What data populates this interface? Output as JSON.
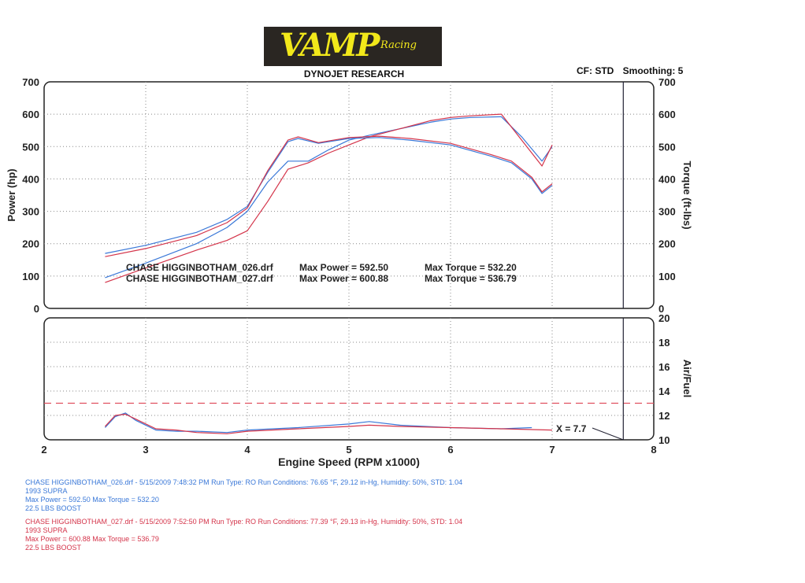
{
  "header": {
    "logo_main": "VAMP",
    "logo_sub": "Racing",
    "title": "DYNOJET RESEARCH",
    "cf": "CF: STD",
    "smoothing": "Smoothing: 5"
  },
  "colors": {
    "run_026": "#3a78d8",
    "run_027": "#d4344a",
    "afr_ref": "#e05060"
  },
  "chart_data": [
    {
      "type": "line",
      "panel": "power-torque",
      "ylabel": "Power (hp)",
      "y2label": "Torque (ft-lbs)",
      "ylim": [
        0,
        700
      ],
      "yticks": [
        "0",
        "100",
        "200",
        "300",
        "400",
        "500",
        "600",
        "700"
      ],
      "xlim": [
        2,
        8
      ],
      "grid": true,
      "annotations": [
        {
          "run": "CHASE HIGGINBOTHAM_026.drf",
          "power_text": "Max Power = 592.50",
          "torque_text": "Max Torque = 532.20"
        },
        {
          "run": "CHASE HIGGINBOTHAM_027.drf",
          "power_text": "Max Power = 600.88",
          "torque_text": "Max Torque = 536.79"
        }
      ],
      "series": [
        {
          "name": "CHASE HIGGINBOTHAM_026.drf",
          "measure": "power",
          "color": "#3a78d8",
          "x": [
            2.6,
            3.0,
            3.5,
            3.8,
            4.0,
            4.2,
            4.4,
            4.6,
            4.8,
            5.0,
            5.2,
            5.5,
            5.8,
            6.0,
            6.2,
            6.5,
            6.7,
            6.9,
            7.0
          ],
          "y": [
            95,
            140,
            200,
            250,
            300,
            390,
            455,
            455,
            490,
            520,
            535,
            555,
            575,
            585,
            590,
            592,
            530,
            455,
            500
          ]
        },
        {
          "name": "CHASE HIGGINBOTHAM_027.drf",
          "measure": "power",
          "color": "#d4344a",
          "x": [
            2.6,
            3.0,
            3.5,
            3.8,
            4.0,
            4.2,
            4.4,
            4.6,
            4.8,
            5.0,
            5.2,
            5.5,
            5.8,
            6.0,
            6.2,
            6.5,
            6.7,
            6.9,
            7.0
          ],
          "y": [
            80,
            125,
            180,
            210,
            240,
            330,
            430,
            450,
            480,
            505,
            530,
            555,
            580,
            590,
            595,
            600,
            520,
            440,
            505
          ]
        },
        {
          "name": "CHASE HIGGINBOTHAM_026.drf",
          "measure": "torque",
          "color": "#3a78d8",
          "x": [
            2.6,
            3.0,
            3.5,
            3.8,
            4.0,
            4.2,
            4.4,
            4.5,
            4.7,
            5.0,
            5.3,
            5.6,
            6.0,
            6.4,
            6.6,
            6.8,
            6.9,
            7.0
          ],
          "y": [
            170,
            195,
            235,
            275,
            315,
            420,
            515,
            525,
            510,
            525,
            528,
            520,
            505,
            470,
            450,
            400,
            355,
            380
          ]
        },
        {
          "name": "CHASE HIGGINBOTHAM_027.drf",
          "measure": "torque",
          "color": "#d4344a",
          "x": [
            2.6,
            3.0,
            3.5,
            3.8,
            4.0,
            4.2,
            4.4,
            4.5,
            4.7,
            5.0,
            5.3,
            5.6,
            6.0,
            6.4,
            6.6,
            6.8,
            6.9,
            7.0
          ],
          "y": [
            160,
            185,
            225,
            265,
            310,
            425,
            520,
            530,
            512,
            528,
            532,
            525,
            510,
            475,
            455,
            405,
            360,
            385
          ]
        }
      ]
    },
    {
      "type": "line",
      "panel": "air-fuel",
      "y2label": "Air/Fuel",
      "xlabel": "Engine Speed (RPM x1000)",
      "ylim": [
        10,
        20
      ],
      "yticks": [
        "10",
        "12",
        "14",
        "16",
        "18",
        "20"
      ],
      "xlim": [
        2,
        8
      ],
      "xticks": [
        "2",
        "3",
        "4",
        "5",
        "6",
        "7",
        "8"
      ],
      "reference_line": 13,
      "cursor": {
        "x": 7.7,
        "label": "X = 7.7"
      },
      "grid": true,
      "series": [
        {
          "name": "CHASE HIGGINBOTHAM_026.drf",
          "color": "#3a78d8",
          "x": [
            2.6,
            2.7,
            2.8,
            2.9,
            3.1,
            3.3,
            3.5,
            3.8,
            4.0,
            4.5,
            5.0,
            5.2,
            5.5,
            6.0,
            6.5,
            6.8
          ],
          "y": [
            11.0,
            11.9,
            12.2,
            11.6,
            10.8,
            10.7,
            10.7,
            10.6,
            10.8,
            11.0,
            11.3,
            11.5,
            11.2,
            11.0,
            10.9,
            11.0
          ]
        },
        {
          "name": "CHASE HIGGINBOTHAM_027.drf",
          "color": "#d4344a",
          "x": [
            2.6,
            2.7,
            2.8,
            2.9,
            3.1,
            3.3,
            3.5,
            3.8,
            4.0,
            4.5,
            5.0,
            5.2,
            5.5,
            6.0,
            6.5,
            7.0
          ],
          "y": [
            11.1,
            12.0,
            12.1,
            11.7,
            10.9,
            10.8,
            10.6,
            10.5,
            10.7,
            10.9,
            11.1,
            11.2,
            11.1,
            11.0,
            10.9,
            10.8
          ]
        }
      ]
    }
  ],
  "legend": [
    {
      "line1": "CHASE HIGGINBOTHAM_026.drf - 5/15/2009 7:48:32 PM  Run Type: RO  Run Conditions: 76.65 °F, 29.12 in-Hg,  Humidity:  50%, STD: 1.04",
      "line2": "1993 SUPRA",
      "line3": "Max Power = 592.50  Max Torque = 532.20",
      "line4": "22.5 LBS BOOST"
    },
    {
      "line1": "CHASE HIGGINBOTHAM_027.drf - 5/15/2009 7:52:50 PM  Run Type: RO  Run Conditions: 77.39 °F, 29.13 in-Hg,  Humidity:  50%, STD: 1.04",
      "line2": "1993 SUPRA",
      "line3": "Max Power = 600.88  Max Torque = 536.79",
      "line4": "22.5 LBS BOOST"
    }
  ]
}
